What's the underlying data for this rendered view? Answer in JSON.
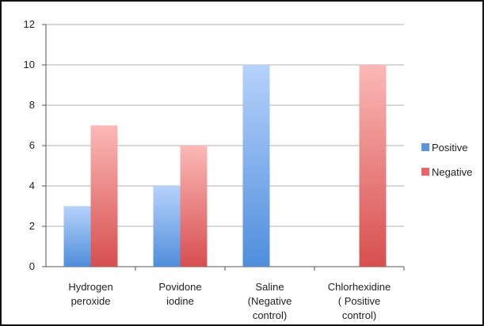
{
  "chart_data": {
    "type": "bar",
    "title": "",
    "xlabel": "",
    "ylabel": "",
    "ylim": [
      0,
      12
    ],
    "yticks": [
      0,
      2,
      4,
      6,
      8,
      10,
      12
    ],
    "grid": true,
    "legend_position": "right",
    "categories": [
      [
        "Hydrogen",
        "peroxide"
      ],
      [
        "Povidone",
        "iodine"
      ],
      [
        "Saline",
        "(Negative",
        "control)"
      ],
      [
        "Chlorhexidine",
        "( Positive",
        "control)"
      ]
    ],
    "series": [
      {
        "name": "Positive",
        "values": [
          3,
          4,
          10,
          0
        ],
        "color_top": "#b6d2fb",
        "color_bottom": "#4f8edc",
        "legend_color": "#5b93dd"
      },
      {
        "name": "Negative",
        "values": [
          7,
          6,
          0,
          10
        ],
        "color_top": "#fbb9b6",
        "color_bottom": "#d74f4f",
        "legend_color": "#e8686a"
      }
    ]
  }
}
